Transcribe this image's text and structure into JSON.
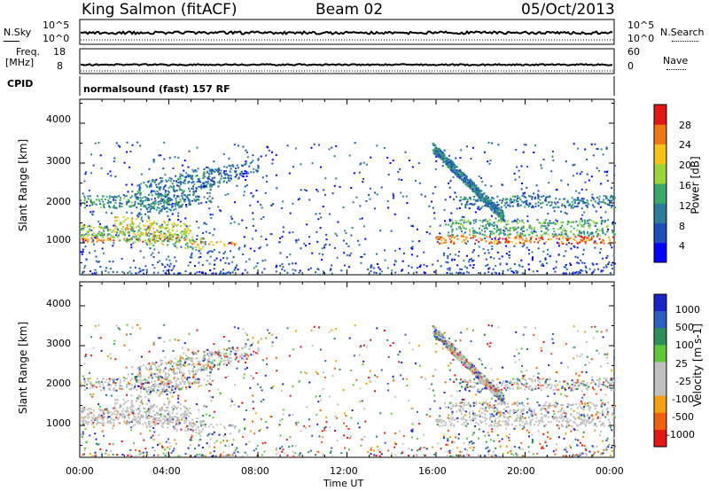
{
  "header": {
    "station": "King Salmon (fitACF)",
    "beam": "Beam 02",
    "date": "05/Oct/2013"
  },
  "top_panels": {
    "nsky": {
      "label": "N.Sky",
      "ticks": [
        "10^5",
        "10^0"
      ],
      "right_label": "N.Search",
      "right_ticks": [
        "10^5",
        "10^0"
      ]
    },
    "freq": {
      "label_line1": "Freq.",
      "label_line2": "[MHz]",
      "ticks": [
        "18",
        "8"
      ],
      "right_label": "Nave",
      "right_ticks": [
        "60",
        "0"
      ]
    },
    "cpid": {
      "label": "CPID",
      "text": "normalsound (fast) 157 RF"
    }
  },
  "chart_data": [
    {
      "type": "heatmap",
      "name": "power-panel",
      "ylabel": "Slant Range [km]",
      "ylim": [
        200,
        4600
      ],
      "yticks": [
        "1000",
        "2000",
        "3000",
        "4000"
      ],
      "xlim": [
        0,
        24
      ],
      "xticks": [
        "00:00",
        "04:00",
        "08:00",
        "12:00",
        "16:00",
        "20:00",
        "00:00"
      ],
      "colorbar": {
        "label": "Power [dB]",
        "ticks": [
          "4",
          "8",
          "12",
          "16",
          "20",
          "24",
          "28"
        ],
        "colors": [
          "#0000ff",
          "#1e4fb8",
          "#2f7d9a",
          "#3aa868",
          "#9bd53a",
          "#f6c21a",
          "#f07a12",
          "#e01818"
        ]
      }
    },
    {
      "type": "heatmap",
      "name": "velocity-panel",
      "ylabel": "Slant Range [km]",
      "ylim": [
        200,
        4600
      ],
      "yticks": [
        "1000",
        "2000",
        "3000",
        "4000"
      ],
      "xlim": [
        0,
        24
      ],
      "xticks": [
        "00:00",
        "04:00",
        "08:00",
        "12:00",
        "16:00",
        "20:00",
        "00:00"
      ],
      "xlabel": "Time UT",
      "colorbar": {
        "label": "Velocity [m s-1]",
        "ticks": [
          "1000",
          "500",
          "100",
          "25",
          "-25",
          "-100",
          "-500",
          "-1000"
        ],
        "colors": [
          "#1a22c8",
          "#2e5fbf",
          "#2f8f5a",
          "#5fc63a",
          "#c0c0c0",
          "#c0c0c0",
          "#f0a010",
          "#f06010",
          "#e01818"
        ]
      }
    }
  ]
}
